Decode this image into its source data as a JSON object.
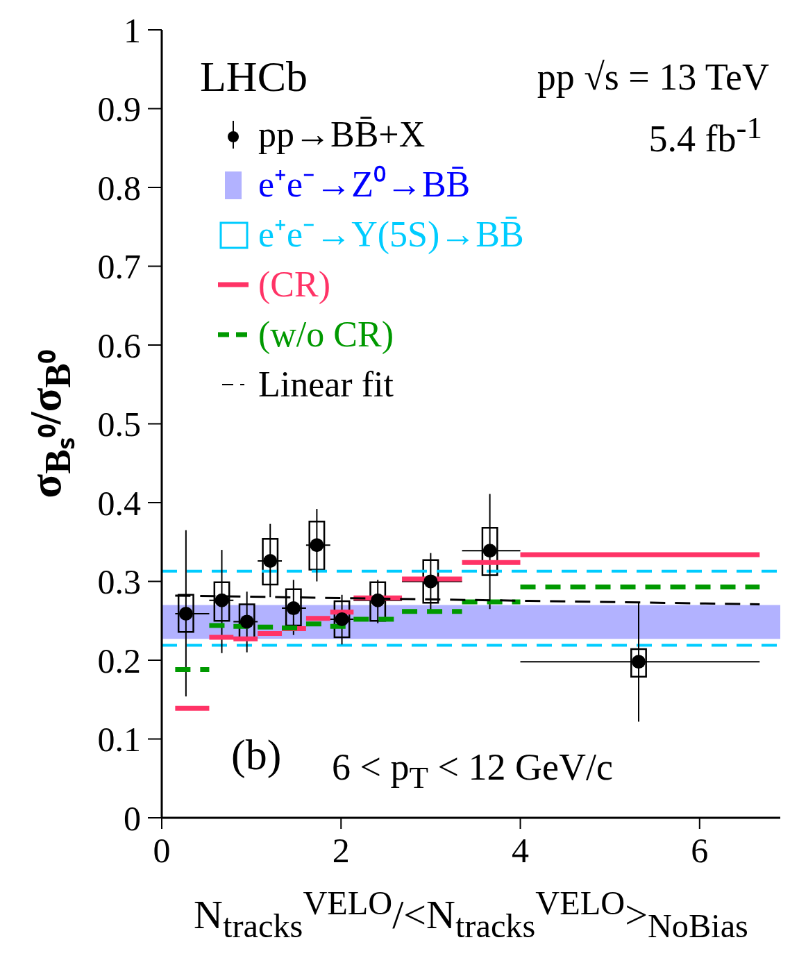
{
  "chart_data": {
    "type": "scatter",
    "xlabel": "N$_{tracks}$$^{VELO}$/<N$_{tracks}$$^{VELO}$>$_{NoBias}$",
    "ylabel": "σ$_{Bₛ⁰}$/σ$_{B⁰}$",
    "annotations": [
      "LHCb",
      "pp √s = 13 TeV",
      "5.4 fb$^{-1}$",
      "(b)",
      "6 < p$_{T}$ < 12 GeV/c"
    ],
    "xlim": [
      0,
      6.9
    ],
    "xticks": [
      0,
      2,
      4,
      6
    ],
    "ylim": [
      0,
      1
    ],
    "yticks": [
      0,
      0.1,
      0.2,
      0.3,
      0.4,
      0.5,
      0.6,
      0.7,
      0.8,
      0.9,
      1
    ],
    "grid": false,
    "legend": "top left",
    "marker": "circle",
    "series": [
      {
        "name": "pp→BB̄+X",
        "color": "#000000",
        "x": [
          0.27,
          0.67,
          0.95,
          1.21,
          1.47,
          1.73,
          2.01,
          2.41,
          3.0,
          3.66,
          5.32
        ],
        "values": [
          0.259,
          0.276,
          0.249,
          0.326,
          0.266,
          0.346,
          0.252,
          0.276,
          0.3,
          0.339,
          0.198
        ],
        "errors": [
          [
            0.154,
            0.365
          ],
          [
            0.209,
            0.34
          ],
          [
            0.21,
            0.287
          ],
          [
            0.28,
            0.373
          ],
          [
            0.232,
            0.302
          ],
          [
            0.3,
            0.392
          ],
          [
            0.22,
            0.283
          ],
          [
            0.247,
            0.302
          ],
          [
            0.264,
            0.336
          ],
          [
            0.265,
            0.411
          ],
          [
            0.122,
            0.273
          ]
        ],
        "xerrors": [
          [
            0.15,
            0.53
          ],
          [
            0.53,
            0.8
          ],
          [
            0.8,
            1.07
          ],
          [
            1.07,
            1.34
          ],
          [
            1.34,
            1.61
          ],
          [
            1.61,
            1.88
          ],
          [
            1.88,
            2.14
          ],
          [
            2.14,
            2.68
          ],
          [
            2.68,
            3.35
          ],
          [
            3.35,
            4.0
          ],
          [
            4.0,
            6.67
          ]
        ]
      },
      {
        "name": "(CR)",
        "type": "step",
        "color": "#ff3366",
        "line_style": "solid",
        "marker": "none",
        "x": [
          0.15,
          0.53,
          0.8,
          1.07,
          1.34,
          1.61,
          1.88,
          2.14,
          2.68,
          3.35,
          4.0,
          6.67
        ],
        "values": [
          0.139,
          0.229,
          0.227,
          0.234,
          0.24,
          0.253,
          0.261,
          0.279,
          0.303,
          0.324,
          0.334,
          0.334
        ]
      },
      {
        "name": "(w/o CR)",
        "type": "step",
        "color": "#009900",
        "line_style": "dashed",
        "marker": "none",
        "x": [
          0.15,
          0.53,
          0.8,
          1.07,
          1.34,
          1.61,
          1.88,
          2.14,
          2.68,
          3.35,
          4.0,
          6.67
        ],
        "values": [
          0.188,
          0.244,
          0.243,
          0.242,
          0.241,
          0.246,
          0.243,
          0.252,
          0.262,
          0.274,
          0.293,
          0.293
        ]
      },
      {
        "name": "Linear fit",
        "type": "line",
        "color": "#000000",
        "line_style": "dashed",
        "marker": "none",
        "x": [
          0.15,
          6.67
        ],
        "values": [
          0.282,
          0.271
        ]
      },
      {
        "type": "bar",
        "color": "#000000",
        "x": [
          0.27,
          0.67,
          0.95,
          1.21,
          1.47,
          1.73,
          2.01,
          2.41,
          3.0,
          3.66,
          5.32
        ],
        "base": [
          0.236,
          0.25,
          0.226,
          0.296,
          0.244,
          0.315,
          0.229,
          0.25,
          0.273,
          0.308,
          0.179
        ],
        "values": [
          0.047,
          0.049,
          0.045,
          0.058,
          0.046,
          0.061,
          0.046,
          0.049,
          0.054,
          0.06,
          0.035
        ]
      }
    ],
    "bands": [
      {
        "axis": "y",
        "from": 0.227,
        "to": 0.27,
        "label": "e⁺e⁻→Z⁰→BB̄",
        "color": "#0000ff"
      }
    ],
    "ref_lines": [
      {
        "axis": "y",
        "value": 0.219,
        "label": "e⁺e⁻→Υ(5S)→BB̄",
        "color": "#00ccff",
        "line_style": "dashed"
      },
      {
        "axis": "y",
        "value": 0.313,
        "color": "#00ccff",
        "line_style": "dashed"
      }
    ]
  }
}
